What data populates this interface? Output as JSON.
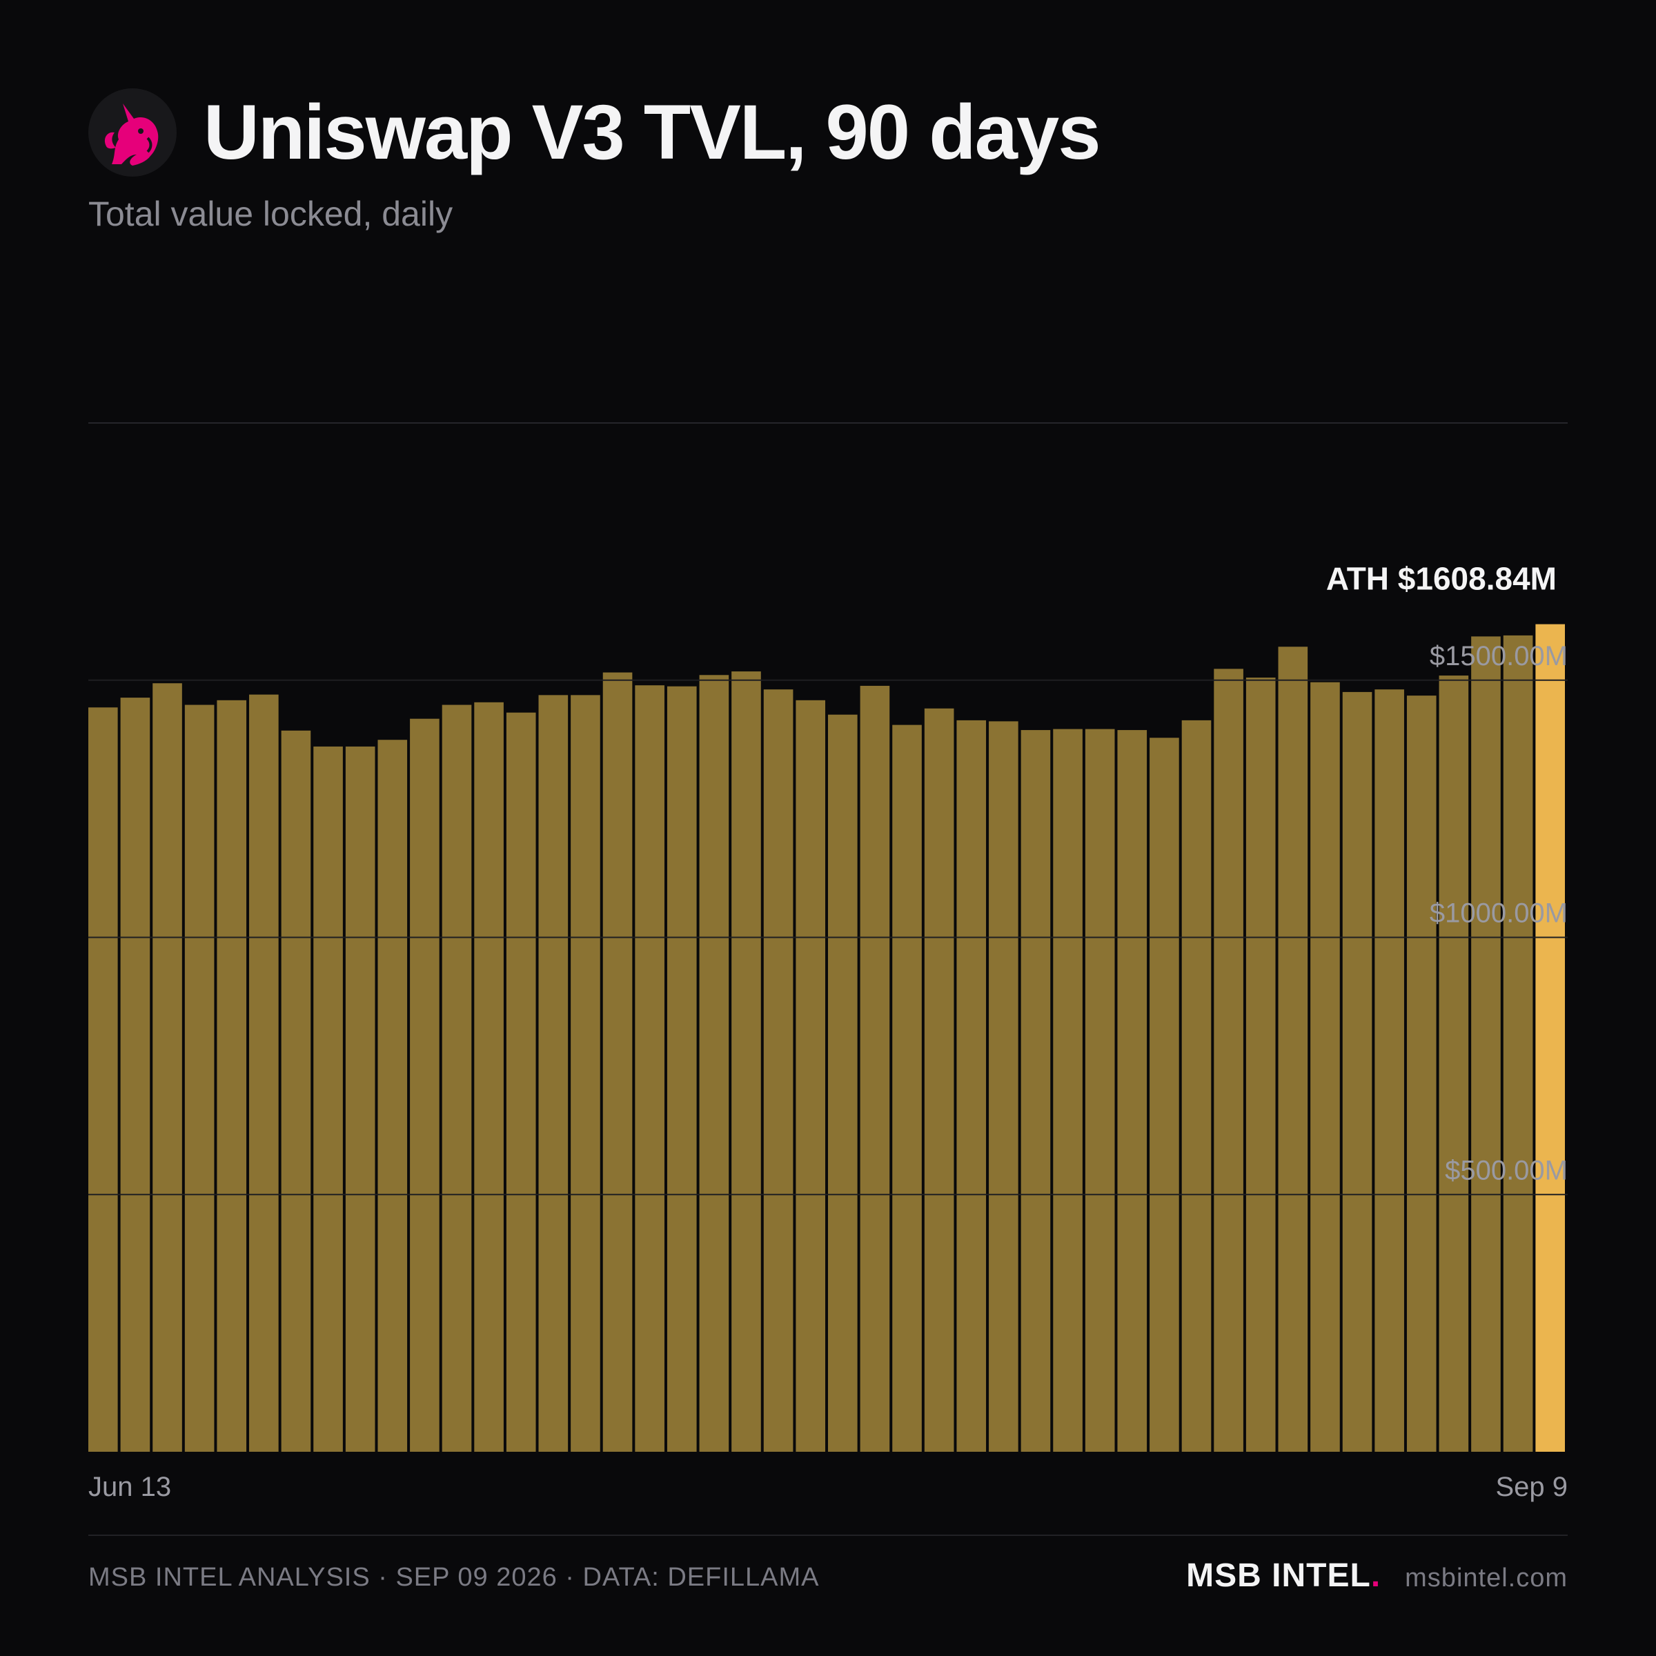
{
  "header": {
    "title": "Uniswap V3 TVL, 90 days",
    "subtitle": "Total value locked, daily",
    "logo_icon": "uniswap-unicorn-icon"
  },
  "chart_data": {
    "type": "bar",
    "x_start_label": "Jun 13",
    "x_end_label": "Sep 9",
    "ylim": [
      0,
      2000
    ],
    "y_ticks": [
      {
        "value": 500,
        "label": "$500.00M"
      },
      {
        "value": 1000,
        "label": "$1000.00M"
      },
      {
        "value": 1500,
        "label": "$1500.00M"
      }
    ],
    "annotation": {
      "label": "ATH $1608.84M",
      "value": 1608.84
    },
    "grid": true,
    "values": [
      1447,
      1466,
      1494,
      1452,
      1461,
      1472,
      1402,
      1371,
      1371,
      1384,
      1425,
      1452,
      1457,
      1437,
      1471,
      1471,
      1515,
      1490,
      1488,
      1510,
      1517,
      1482,
      1461,
      1433,
      1489,
      1413,
      1445,
      1422,
      1420,
      1403,
      1405,
      1405,
      1403,
      1388,
      1422,
      1522,
      1505,
      1565,
      1496,
      1477,
      1482,
      1470,
      1509,
      1585,
      1587,
      1608.84
    ],
    "colors": {
      "bar": "#8b7333",
      "highlight": "#ebb54f"
    }
  },
  "footer": {
    "left": "MSB INTEL ANALYSIS · SEP 09 2026 · DATA: DEFILLAMA",
    "brand": "MSB INTEL",
    "brand_dot": ".",
    "site": "msbintel.com",
    "accent": "#e6007a"
  }
}
